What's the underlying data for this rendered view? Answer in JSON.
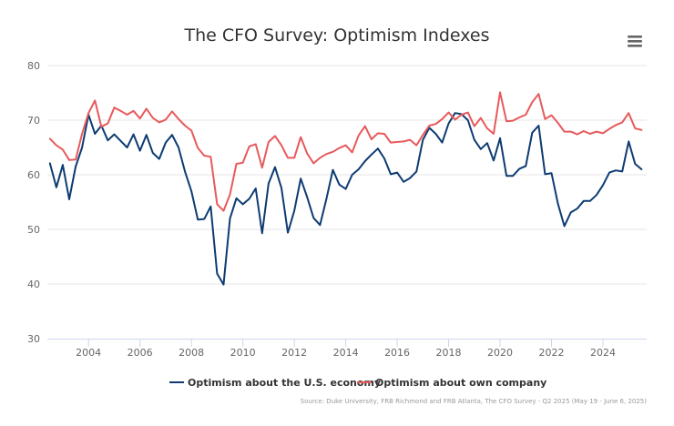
{
  "colors": {
    "us_economy": "#0d3b72",
    "own_company": "#e8595c"
  },
  "source": "Source: Duke University, FRB Richmond and FRB Atlanta, The CFO Survey - Q2 2025 (May 19 - June 6, 2025)",
  "chart_data": {
    "type": "line",
    "title": "The CFO Survey: Optimism Indexes",
    "xlabel": "",
    "ylabel": "",
    "xlim": [
      2002.4,
      2025.7
    ],
    "ylim": [
      30,
      80
    ],
    "yticks": [
      30,
      40,
      50,
      60,
      70,
      80
    ],
    "xticks": [
      2004,
      2006,
      2008,
      2010,
      2012,
      2014,
      2016,
      2018,
      2020,
      2022,
      2024
    ],
    "grid": "horizontal",
    "legend": "bottom-center",
    "series": [
      {
        "name": "Optimism about the U.S. economy",
        "points": [
          [
            2002.5,
            62.1
          ],
          [
            2002.75,
            57.7
          ],
          [
            2003.0,
            61.8
          ],
          [
            2003.25,
            55.5
          ],
          [
            2003.5,
            61.5
          ],
          [
            2003.75,
            65.0
          ],
          [
            2004.0,
            71.0
          ],
          [
            2004.25,
            67.5
          ],
          [
            2004.5,
            69.0
          ],
          [
            2004.75,
            66.3
          ],
          [
            2005.0,
            67.4
          ],
          [
            2005.25,
            66.2
          ],
          [
            2005.5,
            65.0
          ],
          [
            2005.75,
            67.4
          ],
          [
            2006.0,
            64.4
          ],
          [
            2006.25,
            67.3
          ],
          [
            2006.5,
            64.0
          ],
          [
            2006.75,
            62.9
          ],
          [
            2007.0,
            65.9
          ],
          [
            2007.25,
            67.3
          ],
          [
            2007.5,
            65.0
          ],
          [
            2007.75,
            60.6
          ],
          [
            2008.0,
            57.0
          ],
          [
            2008.25,
            51.8
          ],
          [
            2008.5,
            51.9
          ],
          [
            2008.75,
            54.2
          ],
          [
            2009.0,
            41.9
          ],
          [
            2009.25,
            39.9
          ],
          [
            2009.5,
            52.0
          ],
          [
            2009.75,
            55.7
          ],
          [
            2010.0,
            54.6
          ],
          [
            2010.25,
            55.6
          ],
          [
            2010.5,
            57.5
          ],
          [
            2010.75,
            49.3
          ],
          [
            2011.0,
            58.4
          ],
          [
            2011.25,
            61.4
          ],
          [
            2011.5,
            57.6
          ],
          [
            2011.75,
            49.4
          ],
          [
            2012.0,
            53.4
          ],
          [
            2012.25,
            59.3
          ],
          [
            2012.5,
            55.9
          ],
          [
            2012.75,
            52.1
          ],
          [
            2013.0,
            50.8
          ],
          [
            2013.25,
            55.6
          ],
          [
            2013.5,
            60.9
          ],
          [
            2013.75,
            58.2
          ],
          [
            2014.0,
            57.4
          ],
          [
            2014.25,
            60.0
          ],
          [
            2014.5,
            61.0
          ],
          [
            2014.75,
            62.5
          ],
          [
            2015.0,
            63.7
          ],
          [
            2015.25,
            64.8
          ],
          [
            2015.5,
            63.0
          ],
          [
            2015.75,
            60.1
          ],
          [
            2016.0,
            60.4
          ],
          [
            2016.25,
            58.7
          ],
          [
            2016.5,
            59.4
          ],
          [
            2016.75,
            60.6
          ],
          [
            2017.0,
            66.4
          ],
          [
            2017.25,
            68.6
          ],
          [
            2017.5,
            67.5
          ],
          [
            2017.75,
            65.9
          ],
          [
            2018.0,
            69.4
          ],
          [
            2018.25,
            71.3
          ],
          [
            2018.5,
            71.1
          ],
          [
            2018.75,
            70.0
          ],
          [
            2019.0,
            66.4
          ],
          [
            2019.25,
            64.7
          ],
          [
            2019.5,
            65.8
          ],
          [
            2019.75,
            62.6
          ],
          [
            2020.0,
            66.7
          ],
          [
            2020.25,
            59.8
          ],
          [
            2020.5,
            59.8
          ],
          [
            2020.75,
            61.1
          ],
          [
            2021.0,
            61.6
          ],
          [
            2021.25,
            67.7
          ],
          [
            2021.5,
            69.0
          ],
          [
            2021.75,
            60.1
          ],
          [
            2022.0,
            60.3
          ],
          [
            2022.25,
            54.7
          ],
          [
            2022.5,
            50.6
          ],
          [
            2022.75,
            53.1
          ],
          [
            2023.0,
            53.8
          ],
          [
            2023.25,
            55.2
          ],
          [
            2023.5,
            55.2
          ],
          [
            2023.75,
            56.3
          ],
          [
            2024.0,
            58.1
          ],
          [
            2024.25,
            60.4
          ],
          [
            2024.5,
            60.8
          ],
          [
            2024.75,
            60.6
          ],
          [
            2025.0,
            66.1
          ],
          [
            2025.25,
            62.0
          ],
          [
            2025.5,
            61.0
          ]
        ]
      },
      {
        "name": "Optimism about own company",
        "points": [
          [
            2002.5,
            66.6
          ],
          [
            2002.75,
            65.4
          ],
          [
            2003.0,
            64.6
          ],
          [
            2003.25,
            62.7
          ],
          [
            2003.5,
            62.8
          ],
          [
            2003.75,
            67.5
          ],
          [
            2004.0,
            71.3
          ],
          [
            2004.25,
            73.6
          ],
          [
            2004.5,
            68.8
          ],
          [
            2004.75,
            69.4
          ],
          [
            2005.0,
            72.3
          ],
          [
            2005.25,
            71.7
          ],
          [
            2005.5,
            71.0
          ],
          [
            2005.75,
            71.7
          ],
          [
            2006.0,
            70.3
          ],
          [
            2006.25,
            72.1
          ],
          [
            2006.5,
            70.4
          ],
          [
            2006.75,
            69.6
          ],
          [
            2007.0,
            70.1
          ],
          [
            2007.25,
            71.6
          ],
          [
            2007.5,
            70.2
          ],
          [
            2007.75,
            69.0
          ],
          [
            2008.0,
            68.1
          ],
          [
            2008.25,
            64.9
          ],
          [
            2008.5,
            63.5
          ],
          [
            2008.75,
            63.3
          ],
          [
            2009.0,
            54.6
          ],
          [
            2009.25,
            53.4
          ],
          [
            2009.5,
            56.4
          ],
          [
            2009.75,
            62.0
          ],
          [
            2010.0,
            62.2
          ],
          [
            2010.25,
            65.2
          ],
          [
            2010.5,
            65.6
          ],
          [
            2010.75,
            61.3
          ],
          [
            2011.0,
            66.0
          ],
          [
            2011.25,
            67.1
          ],
          [
            2011.5,
            65.4
          ],
          [
            2011.75,
            63.1
          ],
          [
            2012.0,
            63.1
          ],
          [
            2012.25,
            66.9
          ],
          [
            2012.5,
            63.9
          ],
          [
            2012.75,
            62.1
          ],
          [
            2013.0,
            63.1
          ],
          [
            2013.25,
            63.8
          ],
          [
            2013.5,
            64.2
          ],
          [
            2013.75,
            64.9
          ],
          [
            2014.0,
            65.4
          ],
          [
            2014.25,
            64.1
          ],
          [
            2014.5,
            67.2
          ],
          [
            2014.75,
            68.9
          ],
          [
            2015.0,
            66.5
          ],
          [
            2015.25,
            67.6
          ],
          [
            2015.5,
            67.5
          ],
          [
            2015.75,
            65.9
          ],
          [
            2016.0,
            66.0
          ],
          [
            2016.25,
            66.1
          ],
          [
            2016.5,
            66.4
          ],
          [
            2016.75,
            65.4
          ],
          [
            2017.0,
            67.3
          ],
          [
            2017.25,
            69.0
          ],
          [
            2017.5,
            69.3
          ],
          [
            2017.75,
            70.2
          ],
          [
            2018.0,
            71.4
          ],
          [
            2018.25,
            70.1
          ],
          [
            2018.5,
            71.0
          ],
          [
            2018.75,
            71.4
          ],
          [
            2019.0,
            68.9
          ],
          [
            2019.25,
            70.4
          ],
          [
            2019.5,
            68.5
          ],
          [
            2019.75,
            67.5
          ],
          [
            2020.0,
            75.1
          ],
          [
            2020.25,
            69.8
          ],
          [
            2020.5,
            69.9
          ],
          [
            2020.75,
            70.5
          ],
          [
            2021.0,
            71.0
          ],
          [
            2021.25,
            73.3
          ],
          [
            2021.5,
            74.8
          ],
          [
            2021.75,
            70.2
          ],
          [
            2022.0,
            70.9
          ],
          [
            2022.25,
            69.5
          ],
          [
            2022.5,
            67.9
          ],
          [
            2022.75,
            67.9
          ],
          [
            2023.0,
            67.4
          ],
          [
            2023.25,
            68.0
          ],
          [
            2023.5,
            67.5
          ],
          [
            2023.75,
            67.9
          ],
          [
            2024.0,
            67.6
          ],
          [
            2024.25,
            68.4
          ],
          [
            2024.5,
            69.1
          ],
          [
            2024.75,
            69.6
          ],
          [
            2025.0,
            71.3
          ],
          [
            2025.25,
            68.5
          ],
          [
            2025.5,
            68.2
          ]
        ]
      }
    ]
  }
}
